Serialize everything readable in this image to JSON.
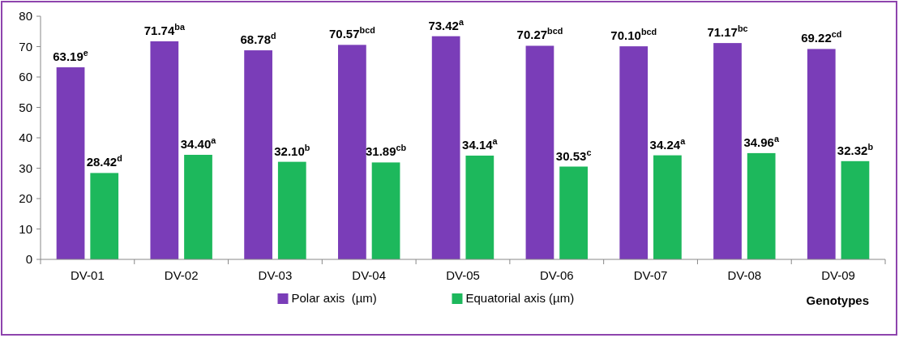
{
  "chart_data": {
    "type": "bar",
    "xlabel": "Genotypes",
    "categories": [
      "DV-01",
      "DV-02",
      "DV-03",
      "DV-04",
      "DV-05",
      "DV-06",
      "DV-07",
      "DV-08",
      "DV-09"
    ],
    "series": [
      {
        "name": "Polar axis  (µm)",
        "color": "#7a3db8",
        "values": [
          63.19,
          71.74,
          68.78,
          70.57,
          73.42,
          70.27,
          70.1,
          71.17,
          69.22
        ],
        "value_labels": [
          "63.19$^{e}$",
          "71.74$^{ba}$",
          "68.78$^{d}$",
          "70.57$^{bcd}$",
          "73.42$^{a}$",
          "70.27$^{bcd}$",
          "70.10$^{bcd}$",
          "71.17$^{bc}$",
          "69.22$^{cd}$"
        ]
      },
      {
        "name": "Equatorial axis (µm)",
        "color": "#1db85c",
        "values": [
          28.42,
          34.4,
          32.1,
          31.89,
          34.14,
          30.53,
          34.24,
          34.96,
          32.32
        ],
        "value_labels": [
          "28.42$^{d}$",
          "34.40$^{a}$",
          "32.10$^{b}$",
          "31.89$^{cb}$",
          "34.14$^{a}$",
          "30.53$^{c}$",
          "34.24$^{a}$",
          "34.96$^{a}$",
          "32.32$^{b}$"
        ]
      }
    ],
    "ylim": [
      0,
      80
    ],
    "yticks": [
      0,
      10,
      20,
      30,
      40,
      50,
      60,
      70,
      80
    ],
    "grid": false,
    "legend": "bottom"
  }
}
